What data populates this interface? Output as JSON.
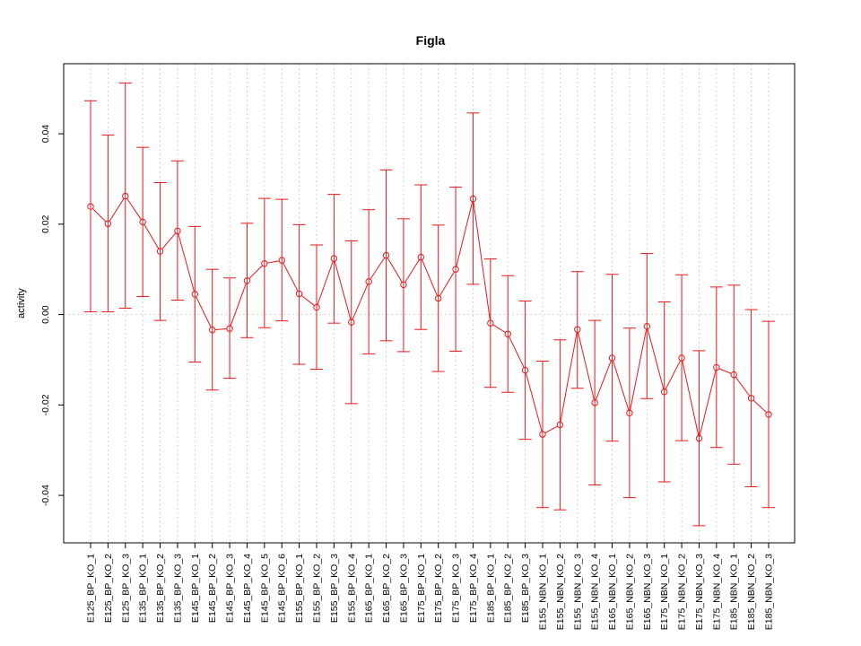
{
  "chart_data": {
    "type": "line",
    "title": "Figla",
    "xlabel": "",
    "ylabel": "activity",
    "ylim": [
      -0.0505,
      0.0555
    ],
    "yticks": [
      -0.04,
      -0.02,
      0.0,
      0.02,
      0.04
    ],
    "ytick_labels": [
      "-0.04",
      "-0.02",
      "0.00",
      "0.02",
      "0.04"
    ],
    "grid": true,
    "colors": {
      "series": "#e8191c",
      "grid": "#c8c8c8",
      "axis": "#000000"
    },
    "categories": [
      "E125_BP_KO_1",
      "E125_BP_KO_2",
      "E125_BP_KO_3",
      "E135_BP_KO_1",
      "E135_BP_KO_2",
      "E135_BP_KO_3",
      "E145_BP_KO_1",
      "E145_BP_KO_2",
      "E145_BP_KO_3",
      "E145_BP_KO_4",
      "E145_BP_KO_5",
      "E145_BP_KO_6",
      "E155_BP_KO_1",
      "E155_BP_KO_2",
      "E155_BP_KO_3",
      "E155_BP_KO_4",
      "E165_BP_KO_1",
      "E165_BP_KO_2",
      "E165_BP_KO_3",
      "E175_BP_KO_1",
      "E175_BP_KO_2",
      "E175_BP_KO_3",
      "E175_BP_KO_4",
      "E185_BP_KO_1",
      "E185_BP_KO_2",
      "E185_BP_KO_3",
      "E155_NBN_KO_1",
      "E155_NBN_KO_2",
      "E155_NBN_KO_3",
      "E155_NBN_KO_4",
      "E165_NBN_KO_1",
      "E165_NBN_KO_2",
      "E165_NBN_KO_3",
      "E175_NBN_KO_1",
      "E175_NBN_KO_2",
      "E175_NBN_KO_3",
      "E175_NBN_KO_4",
      "E185_NBN_KO_1",
      "E185_NBN_KO_2",
      "E185_NBN_KO_3"
    ],
    "values": [
      0.0239,
      0.0201,
      0.0262,
      0.0205,
      0.014,
      0.0185,
      0.0045,
      -0.0034,
      -0.0031,
      0.0075,
      0.0113,
      0.012,
      0.0046,
      0.0016,
      0.0124,
      -0.0017,
      0.0073,
      0.0131,
      0.0066,
      0.0127,
      0.0036,
      0.01,
      0.0256,
      -0.0019,
      -0.0043,
      -0.0123,
      -0.0265,
      -0.0244,
      -0.0033,
      -0.0195,
      -0.0096,
      -0.0218,
      -0.0026,
      -0.0171,
      -0.0096,
      -0.0274,
      -0.0117,
      -0.0133,
      -0.0185,
      -0.0221
    ],
    "upper": [
      0.0473,
      0.0397,
      0.0512,
      0.037,
      0.0292,
      0.034,
      0.0195,
      0.01,
      0.0081,
      0.0202,
      0.0257,
      0.0255,
      0.0199,
      0.0154,
      0.0266,
      0.0163,
      0.0232,
      0.032,
      0.0212,
      0.0287,
      0.0198,
      0.0282,
      0.0446,
      0.0123,
      0.0086,
      0.003,
      -0.0103,
      -0.0056,
      0.0095,
      -0.0013,
      0.0089,
      -0.003,
      0.0135,
      0.0028,
      0.0088,
      -0.008,
      0.0061,
      0.0065,
      0.0011,
      -0.0015
    ],
    "lower": [
      0.0006,
      0.0006,
      0.0014,
      0.004,
      -0.0013,
      0.0032,
      -0.0105,
      -0.0167,
      -0.0141,
      -0.0051,
      -0.0029,
      -0.0014,
      -0.011,
      -0.0121,
      -0.0019,
      -0.0197,
      -0.0087,
      -0.0058,
      -0.0082,
      -0.0033,
      -0.0126,
      -0.0081,
      0.0067,
      -0.0161,
      -0.0172,
      -0.0276,
      -0.0427,
      -0.0432,
      -0.0163,
      -0.0377,
      -0.028,
      -0.0405,
      -0.0186,
      -0.037,
      -0.0279,
      -0.0467,
      -0.0294,
      -0.0331,
      -0.0381,
      -0.0427
    ]
  }
}
